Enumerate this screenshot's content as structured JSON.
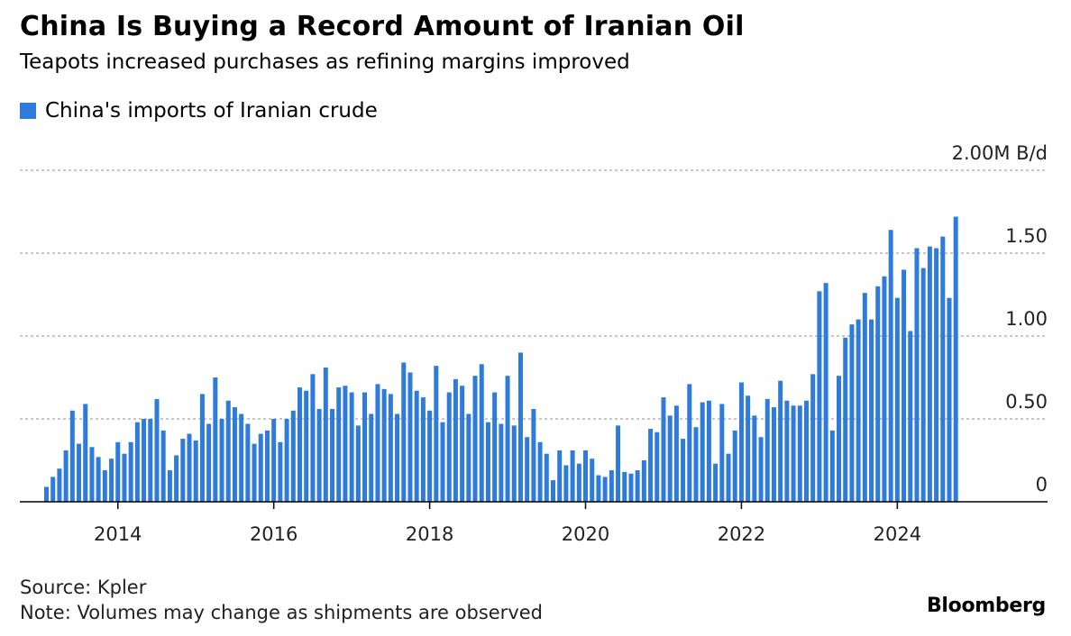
{
  "header": {
    "title": "China Is Buying a Record Amount of Iranian Oil",
    "subtitle": "Teapots increased purchases as refining margins improved"
  },
  "colors": {
    "bar": "#2f7bdc",
    "grid": "#b5b5b5",
    "axis": "#000000"
  },
  "chart_data": {
    "type": "bar",
    "legend": "China's imports of Iranian crude",
    "unit_label": "2.00M B/d",
    "y_ticks": [
      {
        "value": 0,
        "label": "0"
      },
      {
        "value": 0.5,
        "label": "0.50"
      },
      {
        "value": 1.0,
        "label": "1.00"
      },
      {
        "value": 1.5,
        "label": "1.50"
      },
      {
        "value": 2.0,
        "label": "2.00M B/d"
      }
    ],
    "x_ticks": [
      "2014",
      "2016",
      "2018",
      "2020",
      "2022",
      "2024"
    ],
    "ylim": [
      0,
      2.0
    ],
    "start": "2013-02",
    "grid": true,
    "values": [
      0.09,
      0.15,
      0.2,
      0.31,
      0.55,
      0.35,
      0.59,
      0.33,
      0.27,
      0.19,
      0.26,
      0.36,
      0.29,
      0.36,
      0.48,
      0.5,
      0.5,
      0.62,
      0.43,
      0.19,
      0.28,
      0.38,
      0.41,
      0.37,
      0.65,
      0.47,
      0.75,
      0.5,
      0.61,
      0.57,
      0.53,
      0.47,
      0.35,
      0.41,
      0.43,
      0.5,
      0.36,
      0.5,
      0.55,
      0.69,
      0.67,
      0.77,
      0.56,
      0.81,
      0.56,
      0.69,
      0.7,
      0.66,
      0.46,
      0.66,
      0.53,
      0.71,
      0.68,
      0.65,
      0.53,
      0.84,
      0.78,
      0.67,
      0.63,
      0.55,
      0.82,
      0.48,
      0.66,
      0.74,
      0.7,
      0.53,
      0.76,
      0.83,
      0.48,
      0.66,
      0.47,
      0.76,
      0.46,
      0.9,
      0.39,
      0.56,
      0.36,
      0.29,
      0.13,
      0.31,
      0.22,
      0.31,
      0.23,
      0.31,
      0.26,
      0.16,
      0.15,
      0.19,
      0.46,
      0.18,
      0.17,
      0.19,
      0.25,
      0.44,
      0.42,
      0.63,
      0.52,
      0.58,
      0.38,
      0.71,
      0.45,
      0.6,
      0.61,
      0.23,
      0.59,
      0.29,
      0.43,
      0.72,
      0.64,
      0.52,
      0.39,
      0.62,
      0.57,
      0.73,
      0.61,
      0.58,
      0.58,
      0.61,
      0.77,
      1.27,
      1.32,
      0.43,
      0.76,
      0.99,
      1.07,
      1.1,
      1.26,
      1.1,
      1.3,
      1.36,
      1.64,
      1.23,
      1.4,
      1.03,
      1.53,
      1.41,
      1.54,
      1.53,
      1.6,
      1.23,
      1.72
    ]
  },
  "footer": {
    "source": "Source: Kpler",
    "note": "Note: Volumes may change as shipments are observed",
    "brand": "Bloomberg"
  }
}
